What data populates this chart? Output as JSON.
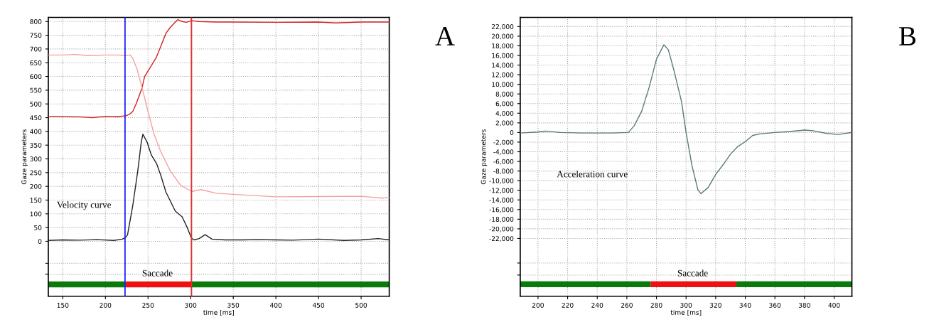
{
  "chart_data": [
    {
      "type": "line",
      "xlabel": "time [ms]",
      "ylabel": "Gaze parameters",
      "xlim": [
        133,
        533
      ],
      "ylim": [
        -200,
        815
      ],
      "xticks": [
        150,
        200,
        250,
        300,
        350,
        400,
        450,
        500
      ],
      "yticks": [
        {
          "value": -120,
          "label": null
        },
        {
          "value": -80,
          "label": null
        },
        0,
        50,
        100,
        150,
        200,
        250,
        300,
        350,
        400,
        450,
        500,
        550,
        600,
        650,
        700,
        750,
        800
      ],
      "grid": true,
      "line_style": "solid",
      "marker": "none",
      "series": [
        {
          "color": "#d42020",
          "x": [
            133,
            150,
            170,
            185,
            200,
            215,
            224,
            228,
            232,
            236,
            240,
            243,
            246,
            250,
            255,
            260,
            265,
            271,
            276,
            281,
            285,
            290,
            295,
            301,
            310,
            330,
            350,
            400,
            450,
            470,
            500,
            533
          ],
          "values": [
            455,
            455,
            453,
            450,
            455,
            454,
            457,
            462,
            472,
            500,
            533,
            559,
            600,
            620,
            645,
            671,
            710,
            757,
            778,
            795,
            807,
            800,
            797,
            803,
            800,
            798,
            798,
            797,
            798,
            795,
            798,
            798
          ]
        },
        {
          "color": "#f4a0a0",
          "x": [
            133,
            150,
            165,
            180,
            200,
            215,
            225,
            229,
            232,
            237,
            243,
            250,
            257,
            265,
            276,
            288,
            301,
            312,
            330,
            350,
            400,
            450,
            500,
            525,
            533
          ],
          "values": [
            678,
            678,
            680,
            676,
            678,
            678,
            676,
            678,
            666,
            628,
            559,
            472,
            390,
            326,
            257,
            205,
            181,
            188,
            175,
            171,
            162,
            163,
            164,
            157,
            160
          ]
        },
        {
          "color": "#222222",
          "x": [
            133,
            150,
            170,
            190,
            210,
            220,
            224,
            226,
            232,
            238,
            242,
            244,
            249,
            254,
            260,
            265,
            271,
            282,
            290,
            296,
            301,
            304,
            310,
            317,
            325,
            340,
            360,
            380,
            400,
            420,
            450,
            480,
            500,
            520,
            533
          ],
          "values": [
            3,
            5,
            4,
            6,
            3,
            8,
            15,
            24,
            128,
            257,
            360,
            390,
            360,
            313,
            283,
            240,
            179,
            110,
            89,
            50,
            11,
            5,
            10,
            24,
            8,
            5,
            5,
            6,
            5,
            4,
            8,
            3,
            5,
            10,
            5
          ]
        },
        {
          "type": "step",
          "color": "#0a7a0a",
          "x": [
            133,
            224
          ],
          "values": [
            -157,
            -157
          ]
        },
        {
          "type": "step",
          "color": "#ee1111",
          "x": [
            224,
            301
          ],
          "values": [
            -157,
            -157
          ]
        },
        {
          "type": "step",
          "color": "#0a7a0a",
          "x": [
            301,
            533
          ],
          "values": [
            -157,
            -157
          ]
        }
      ],
      "ref_lines": [
        {
          "axis": "x",
          "value": 223,
          "color": "#2020ff"
        },
        {
          "axis": "x",
          "value": 301,
          "color": "#e03030"
        }
      ],
      "annotations": [
        "Velocity curve",
        "Saccade",
        "A"
      ]
    },
    {
      "type": "line",
      "xlabel": "time [ms]",
      "ylabel": "Gaze parameters",
      "xlim": [
        188,
        412
      ],
      "ylim": [
        -34000,
        23900
      ],
      "xticks": [
        200,
        220,
        240,
        260,
        280,
        300,
        320,
        340,
        360,
        380,
        400
      ],
      "yticks": [
        {
          "value": -29600,
          "label": null
        },
        {
          "value": -27100,
          "label": null
        },
        {
          "value": -22000,
          "label": "-22,000"
        },
        {
          "value": -20000,
          "label": "-20,000"
        },
        {
          "value": -18000,
          "label": "-18,000"
        },
        {
          "value": -16000,
          "label": "-16,000"
        },
        {
          "value": -14000,
          "label": "-14,000"
        },
        {
          "value": -12000,
          "label": "-12,000"
        },
        {
          "value": -10000,
          "label": "-10,000"
        },
        {
          "value": -8000,
          "label": "-8,000"
        },
        {
          "value": -6000,
          "label": "-6,000"
        },
        {
          "value": -4000,
          "label": "-4,000"
        },
        {
          "value": -2000,
          "label": "-2,000"
        },
        0,
        {
          "value": 2000,
          "label": "2,000"
        },
        {
          "value": 4000,
          "label": "4,000"
        },
        {
          "value": 6000,
          "label": "6,000"
        },
        {
          "value": 8000,
          "label": "8,000"
        },
        {
          "value": 10000,
          "label": "10,000"
        },
        {
          "value": 12000,
          "label": "12,000"
        },
        {
          "value": 14000,
          "label": "14,000"
        },
        {
          "value": 16000,
          "label": "16,000"
        },
        {
          "value": 18000,
          "label": "18,000"
        },
        {
          "value": 20000,
          "label": "20,000"
        },
        {
          "value": 22000,
          "label": "22,000"
        }
      ],
      "grid": true,
      "line_style": "solid",
      "marker": "none",
      "series": [
        {
          "color": "#5a7a78",
          "x": [
            188,
            200,
            205,
            215,
            230,
            250,
            261,
            265,
            270,
            275,
            280,
            285,
            288,
            292,
            297,
            300,
            304,
            308,
            310,
            315,
            320,
            325,
            330,
            335,
            340,
            345,
            350,
            360,
            370,
            380,
            385,
            395,
            403,
            412
          ],
          "values": [
            -100,
            100,
            300,
            0,
            -100,
            -100,
            0,
            1400,
            4400,
            9300,
            15200,
            18200,
            17200,
            12700,
            6300,
            0,
            -6900,
            -11900,
            -12700,
            -11400,
            -8700,
            -6700,
            -4500,
            -2900,
            -1900,
            -600,
            -300,
            0,
            200,
            500,
            400,
            -200,
            -400,
            0
          ]
        },
        {
          "type": "step",
          "color": "#0a7a0a",
          "x": [
            188,
            276
          ],
          "values": [
            -31500,
            -31500
          ]
        },
        {
          "type": "step",
          "color": "#ee1111",
          "x": [
            276,
            334
          ],
          "values": [
            -31500,
            -31500
          ]
        },
        {
          "type": "step",
          "color": "#0a7a0a",
          "x": [
            334,
            412
          ],
          "values": [
            -31500,
            -31500
          ]
        }
      ],
      "annotations": [
        "Acceleration curve",
        "Saccade",
        "B"
      ]
    }
  ]
}
